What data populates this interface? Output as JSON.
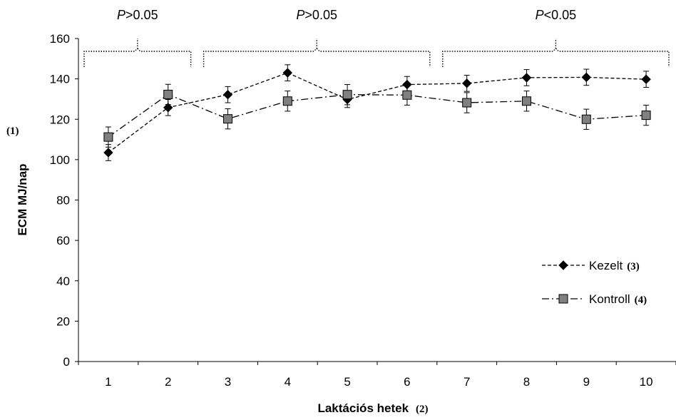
{
  "chart_data": {
    "type": "line",
    "ylabel": "ECM MJ/nap",
    "ylabel_note": "(1)",
    "xlabel": "Laktációs hetek",
    "xlabel_note": "(2)",
    "ylim": [
      0,
      160
    ],
    "y_ticks": [
      0,
      20,
      40,
      60,
      80,
      100,
      120,
      140,
      160
    ],
    "categories": [
      "1",
      "2",
      "3",
      "4",
      "5",
      "6",
      "7",
      "8",
      "9",
      "10"
    ],
    "grid": false,
    "legend_position": "lower-right",
    "series": [
      {
        "name": "Kezelt",
        "note": "(3)",
        "marker": "diamond",
        "line_style": "dashed",
        "color": "#000000",
        "values": [
          103.5,
          125.8,
          132.2,
          143.0,
          129.8,
          137.2,
          137.8,
          140.6,
          140.8,
          139.8
        ],
        "errors": [
          4,
          4,
          4,
          4,
          4,
          4,
          4,
          4,
          4,
          4
        ]
      },
      {
        "name": "Kontroll",
        "note": "(4)",
        "marker": "square",
        "line_style": "dash-dot",
        "color": "#808080",
        "values": [
          111.2,
          132.3,
          120.2,
          129.0,
          132.2,
          132.0,
          128.2,
          129.0,
          120.0,
          122.0
        ],
        "errors": [
          5,
          5,
          5,
          5,
          5,
          5,
          5,
          5,
          5,
          5
        ]
      }
    ],
    "annotations": [
      {
        "label_italic": "P",
        "label_rest": ">0.05",
        "from_week": 1,
        "to_week": 2
      },
      {
        "label_italic": "P",
        "label_rest": ">0.05",
        "from_week": 3,
        "to_week": 6
      },
      {
        "label_italic": "P",
        "label_rest": "<0.05",
        "from_week": 7,
        "to_week": 10
      }
    ]
  }
}
